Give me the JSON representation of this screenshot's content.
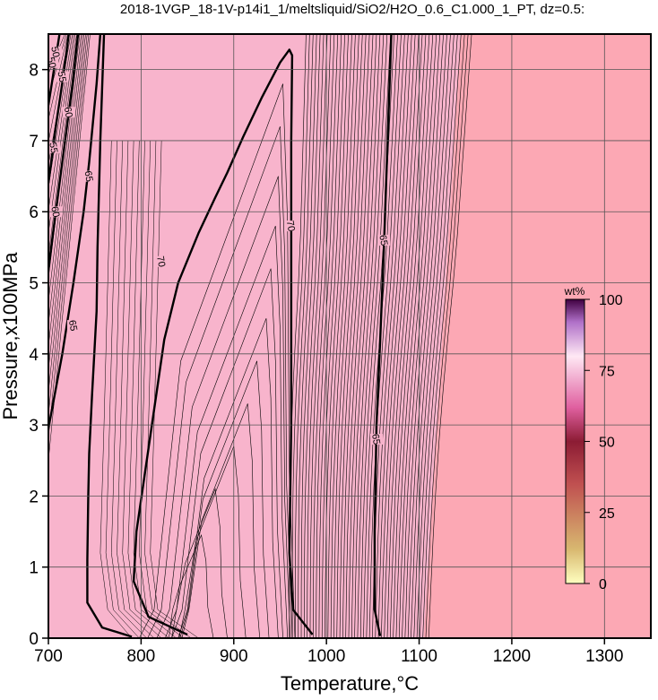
{
  "chart_data": {
    "type": "contour",
    "title": "2018-1VGP_18-1V-p14i1_1/meltsliquid/SiO2/H2O_0.6_C1.000_1_PT, dz=0.5:",
    "xlabel": "Temperature,°C",
    "ylabel": "Pressure,x100MPa",
    "xlim": [
      700,
      1350
    ],
    "ylim": [
      0,
      8.5
    ],
    "x_ticks": [
      "700",
      "800",
      "900",
      "1000",
      "1100",
      "1200",
      "1300"
    ],
    "y_ticks": [
      "0",
      "1",
      "2",
      "3",
      "4",
      "5",
      "6",
      "7",
      "8"
    ],
    "grid": true,
    "background_colors": {
      "melt_field": "#f8b4cc",
      "superliquidus_field": "#fca8b4",
      "frame": "#000000"
    },
    "contour_interval": 0.5,
    "colorbar": {
      "title": "wt%",
      "range": [
        0,
        100
      ],
      "tick_labels": [
        "100",
        "75",
        "50",
        "25",
        "0"
      ],
      "colors": [
        "#ffffc0",
        "#d8b870",
        "#c05050",
        "#8c1c34",
        "#e060a0",
        "#ffe8f4",
        "#b070c8",
        "#400040"
      ]
    },
    "bold_contours": [
      {
        "level": 70,
        "points": [
          [
            850,
            0.05
          ],
          [
            808,
            0.3
          ],
          [
            792,
            0.8
          ],
          [
            795,
            1.5
          ],
          [
            805,
            2.4
          ],
          [
            815,
            3.3
          ],
          [
            825,
            4.2
          ],
          [
            840,
            5.0
          ],
          [
            862,
            5.7
          ],
          [
            880,
            6.2
          ],
          [
            893,
            6.55
          ],
          [
            910,
            7.05
          ],
          [
            930,
            7.6
          ],
          [
            950,
            8.1
          ],
          [
            960,
            8.28
          ],
          [
            963,
            8.2
          ],
          [
            962,
            7.0
          ],
          [
            962,
            5.0
          ],
          [
            962,
            3.0
          ],
          [
            960,
            1.2
          ],
          [
            964,
            0.4
          ],
          [
            985,
            0.05
          ]
        ],
        "labels": [
          {
            "text": "70",
            "x": 822,
            "y": 5.3
          },
          {
            "text": "70",
            "x": 962,
            "y": 5.8
          }
        ]
      },
      {
        "level": 65,
        "points": [
          [
            790,
            0.02
          ],
          [
            758,
            0.15
          ],
          [
            742,
            0.5
          ],
          [
            742,
            1.1
          ],
          [
            743,
            2.0
          ],
          [
            744,
            2.6
          ],
          [
            747,
            3.4
          ],
          [
            752,
            4.6
          ],
          [
            753,
            5.5
          ],
          [
            756,
            7.0
          ],
          [
            760,
            8.5
          ]
        ],
        "labels": []
      },
      {
        "level": 65,
        "points": [
          [
            1058,
            0.03
          ],
          [
            1052,
            0.4
          ],
          [
            1052,
            1.5
          ],
          [
            1054,
            3.0
          ],
          [
            1058,
            4.2
          ],
          [
            1062,
            5.5
          ],
          [
            1066,
            7.0
          ],
          [
            1070,
            8.5
          ]
        ],
        "labels": [
          {
            "text": "65",
            "x": 1054,
            "y": 2.8
          },
          {
            "text": "65",
            "x": 1062,
            "y": 5.6
          }
        ]
      },
      {
        "level": 65,
        "points": [
          [
            700,
            2.95
          ],
          [
            715,
            4.0
          ],
          [
            727,
            5.0
          ],
          [
            738,
            6.0
          ],
          [
            744,
            6.7
          ],
          [
            752,
            7.8
          ],
          [
            756,
            8.5
          ]
        ],
        "labels": [
          {
            "text": "65",
            "x": 727,
            "y": 4.4
          },
          {
            "text": "65",
            "x": 744,
            "y": 6.5
          }
        ]
      },
      {
        "level": 60,
        "points": [
          [
            700,
            5.2
          ],
          [
            708,
            6.0
          ],
          [
            717,
            6.9
          ],
          [
            726,
            7.8
          ],
          [
            732,
            8.5
          ]
        ],
        "labels": [
          {
            "text": "60",
            "x": 708,
            "y": 6.0
          },
          {
            "text": "60",
            "x": 722,
            "y": 7.4
          }
        ]
      },
      {
        "level": 55,
        "points": [
          [
            700,
            6.4
          ],
          [
            708,
            7.2
          ],
          [
            716,
            7.9
          ],
          [
            722,
            8.5
          ]
        ],
        "labels": [
          {
            "text": "55",
            "x": 706,
            "y": 6.9
          },
          {
            "text": "55",
            "x": 715,
            "y": 7.9
          }
        ]
      },
      {
        "level": 50,
        "points": [
          [
            700,
            7.5
          ],
          [
            706,
            8.0
          ],
          [
            712,
            8.5
          ]
        ],
        "labels": [
          {
            "text": "50",
            "x": 708,
            "y": 8.25
          },
          {
            "text": "50",
            "x": 704,
            "y": 8.1
          }
        ]
      }
    ]
  }
}
